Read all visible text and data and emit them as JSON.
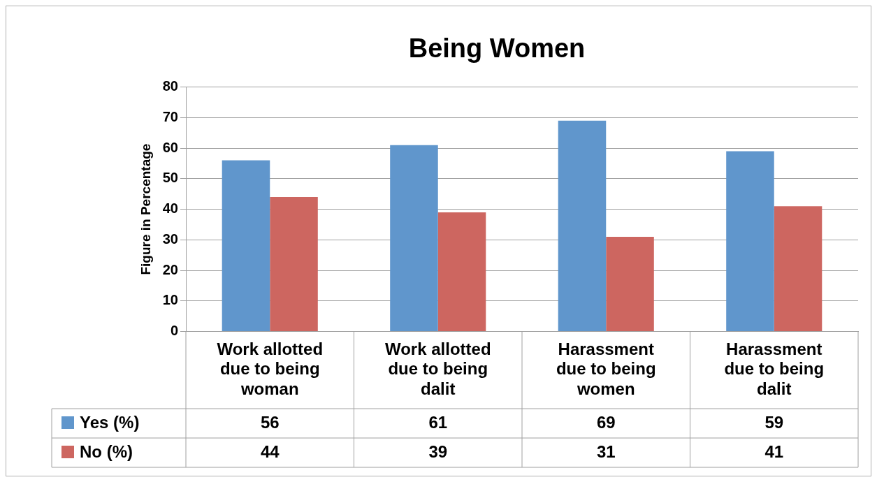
{
  "chart_data": {
    "type": "bar",
    "title": "Being Women",
    "ylabel": "Figure in Percentage",
    "categories": [
      "Work allotted due to being woman",
      "Work allotted due to being dalit",
      "Harassment due to being women",
      "Harassment due to being dalit"
    ],
    "series": [
      {
        "name": "Yes (%)",
        "color": "#6096cc",
        "values": [
          56,
          61,
          69,
          59
        ]
      },
      {
        "name": "No (%)",
        "color": "#cd6660",
        "values": [
          44,
          39,
          31,
          41
        ]
      }
    ],
    "ylim": [
      0,
      80
    ],
    "yticks": [
      0,
      10,
      20,
      30,
      40,
      50,
      60,
      70,
      80
    ],
    "grid": "y",
    "legend": "bottom",
    "data_labels": true
  }
}
